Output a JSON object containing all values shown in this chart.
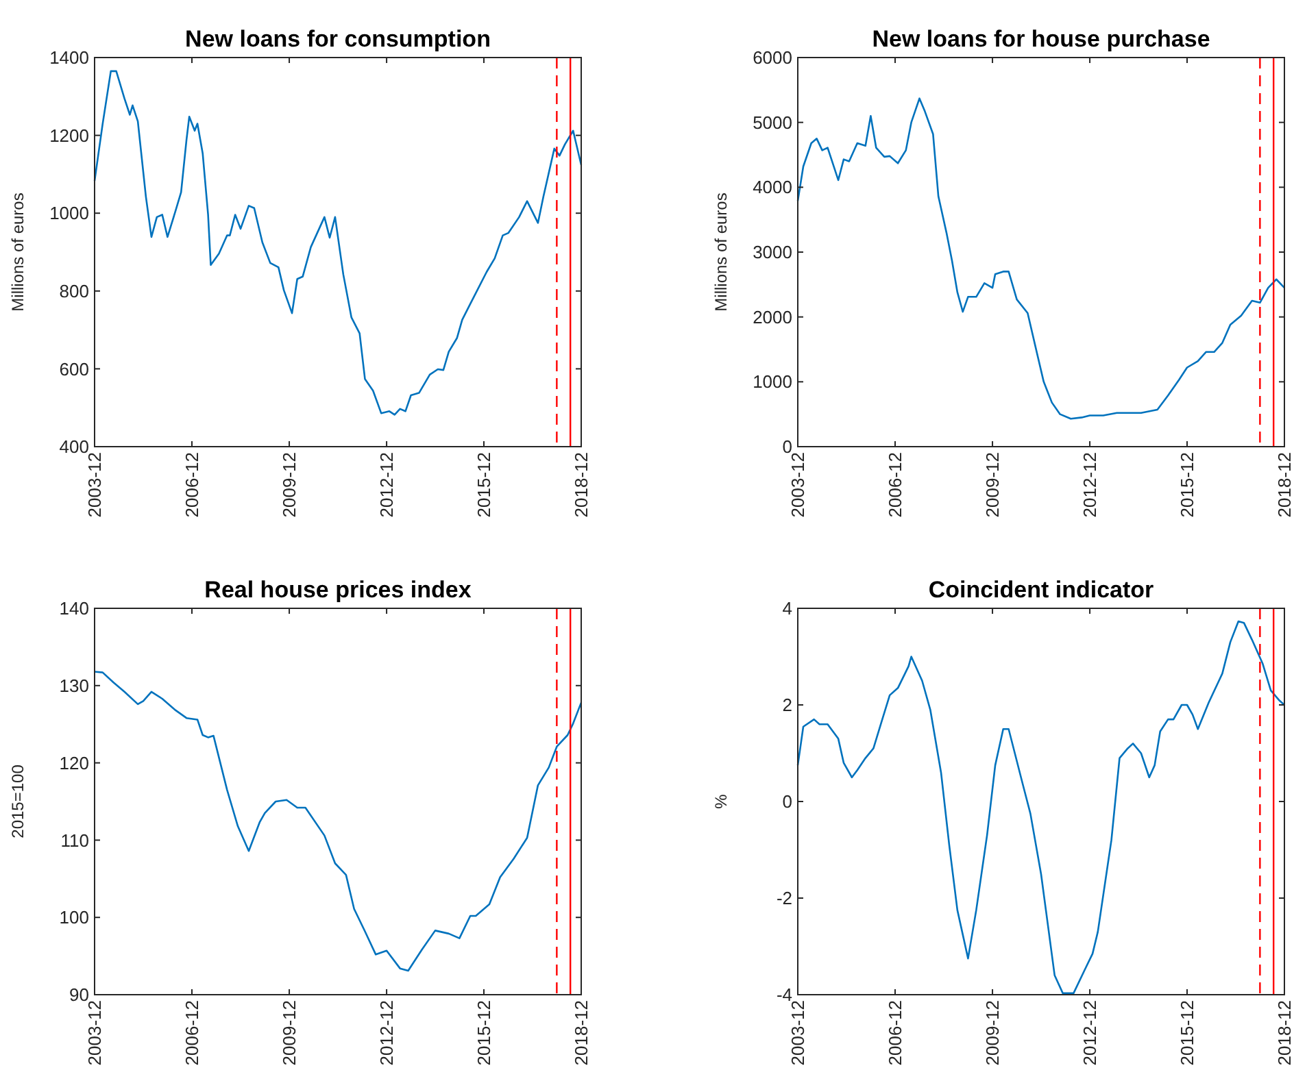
{
  "chart_data": [
    {
      "type": "line",
      "title": "New loans for consumption",
      "ylabel": "Millions of euros",
      "xlim": [
        "2003-12",
        "2018-12"
      ],
      "xticks": [
        "2003-12",
        "2006-12",
        "2009-12",
        "2012-12",
        "2015-12",
        "2018-12"
      ],
      "ylim": [
        400,
        1400
      ],
      "yticks": [
        400,
        600,
        800,
        1000,
        1200,
        1400
      ],
      "ref_lines": [
        {
          "axis": "x",
          "value": "2018-03",
          "color": "#ff0000",
          "line_style": "dashed"
        },
        {
          "axis": "x",
          "value": "2018-08",
          "color": "#ff0000",
          "line_style": "solid"
        }
      ],
      "series": [
        {
          "color": "#0072bd",
          "x": [
            "2003-12",
            "2004-03",
            "2004-06",
            "2004-08",
            "2004-11",
            "2005-01",
            "2005-02",
            "2005-04",
            "2005-07",
            "2005-09",
            "2005-11",
            "2006-01",
            "2006-03",
            "2006-06",
            "2006-08",
            "2006-10",
            "2006-11",
            "2007-01",
            "2007-02",
            "2007-04",
            "2007-06",
            "2007-07",
            "2007-10",
            "2008-01",
            "2008-02",
            "2008-04",
            "2008-06",
            "2008-09",
            "2008-11",
            "2009-02",
            "2009-05",
            "2009-08",
            "2009-10",
            "2010-01",
            "2010-03",
            "2010-05",
            "2010-08",
            "2011-01",
            "2011-03",
            "2011-05",
            "2011-08",
            "2011-11",
            "2012-02",
            "2012-04",
            "2012-07",
            "2012-10",
            "2013-01",
            "2013-03",
            "2013-05",
            "2013-07",
            "2013-09",
            "2013-12",
            "2014-04",
            "2014-07",
            "2014-09",
            "2014-11",
            "2015-02",
            "2015-04",
            "2015-07",
            "2016-01",
            "2016-04",
            "2016-07",
            "2016-09",
            "2017-01",
            "2017-04",
            "2017-08",
            "2017-10",
            "2018-02",
            "2018-04",
            "2018-06",
            "2018-09",
            "2018-12"
          ],
          "values": [
            1083,
            1230,
            1365,
            1365,
            1295,
            1253,
            1277,
            1236,
            1042,
            939,
            990,
            996,
            939,
            1007,
            1054,
            1189,
            1248,
            1212,
            1230,
            1154,
            996,
            867,
            896,
            943,
            943,
            996,
            960,
            1019,
            1013,
            925,
            872,
            861,
            802,
            743,
            831,
            837,
            913,
            990,
            937,
            990,
            843,
            732,
            691,
            574,
            544,
            486,
            491,
            482,
            497,
            491,
            532,
            538,
            585,
            599,
            597,
            644,
            679,
            726,
            767,
            849,
            884,
            943,
            949,
            990,
            1031,
            975,
            1042,
            1166,
            1148,
            1177,
            1212,
            1124
          ]
        }
      ]
    },
    {
      "type": "line",
      "title": "New loans for house purchase",
      "ylabel": "Millions of euros",
      "xlim": [
        "2003-12",
        "2018-12"
      ],
      "xticks": [
        "2003-12",
        "2006-12",
        "2009-12",
        "2012-12",
        "2015-12",
        "2018-12"
      ],
      "ylim": [
        0,
        6000
      ],
      "yticks": [
        0,
        1000,
        2000,
        3000,
        4000,
        5000,
        6000
      ],
      "ref_lines": [
        {
          "axis": "x",
          "value": "2018-03",
          "color": "#ff0000",
          "line_style": "dashed"
        },
        {
          "axis": "x",
          "value": "2018-08",
          "color": "#ff0000",
          "line_style": "solid"
        }
      ],
      "series": [
        {
          "color": "#0072bd",
          "x": [
            "2003-12",
            "2004-02",
            "2004-05",
            "2004-07",
            "2004-09",
            "2004-11",
            "2005-03",
            "2005-05",
            "2005-07",
            "2005-10",
            "2006-01",
            "2006-03",
            "2006-05",
            "2006-08",
            "2006-10",
            "2007-01",
            "2007-04",
            "2007-06",
            "2007-09",
            "2007-11",
            "2008-02",
            "2008-04",
            "2008-07",
            "2008-09",
            "2008-11",
            "2009-01",
            "2009-03",
            "2009-06",
            "2009-09",
            "2009-12",
            "2010-01",
            "2010-04",
            "2010-06",
            "2010-09",
            "2011-01",
            "2011-04",
            "2011-07",
            "2011-10",
            "2012-01",
            "2012-05",
            "2012-09",
            "2012-12",
            "2013-05",
            "2013-10",
            "2014-07",
            "2015-01",
            "2015-05",
            "2015-09",
            "2015-12",
            "2016-04",
            "2016-07",
            "2016-10",
            "2017-01",
            "2017-04",
            "2017-08",
            "2017-12",
            "2018-03",
            "2018-06",
            "2018-09",
            "2018-12"
          ],
          "values": [
            3790,
            4320,
            4680,
            4750,
            4570,
            4610,
            4110,
            4430,
            4400,
            4680,
            4640,
            5100,
            4610,
            4470,
            4480,
            4370,
            4570,
            5000,
            5370,
            5170,
            4820,
            3860,
            3300,
            2870,
            2380,
            2080,
            2310,
            2310,
            2520,
            2450,
            2660,
            2700,
            2700,
            2270,
            2060,
            1530,
            1000,
            680,
            500,
            430,
            450,
            480,
            480,
            520,
            520,
            570,
            790,
            1030,
            1220,
            1320,
            1460,
            1460,
            1600,
            1880,
            2020,
            2250,
            2220,
            2450,
            2580,
            2450
          ]
        }
      ]
    },
    {
      "type": "line",
      "title": "Real house prices index",
      "ylabel": "2015=100",
      "xlim": [
        "2003-12",
        "2018-12"
      ],
      "xticks": [
        "2003-12",
        "2006-12",
        "2009-12",
        "2012-12",
        "2015-12",
        "2018-12"
      ],
      "ylim": [
        90,
        140
      ],
      "yticks": [
        90,
        100,
        110,
        120,
        130,
        140
      ],
      "ref_lines": [
        {
          "axis": "x",
          "value": "2018-03",
          "color": "#ff0000",
          "line_style": "dashed"
        },
        {
          "axis": "x",
          "value": "2018-08",
          "color": "#ff0000",
          "line_style": "solid"
        }
      ],
      "series": [
        {
          "color": "#0072bd",
          "x": [
            "2003-12",
            "2004-03",
            "2004-07",
            "2004-11",
            "2005-04",
            "2005-06",
            "2005-09",
            "2006-01",
            "2006-06",
            "2006-10",
            "2007-02",
            "2007-04",
            "2007-06",
            "2007-08",
            "2008-01",
            "2008-05",
            "2008-09",
            "2009-01",
            "2009-03",
            "2009-07",
            "2009-11",
            "2010-03",
            "2010-06",
            "2011-01",
            "2011-05",
            "2011-09",
            "2011-12",
            "2012-04",
            "2012-08",
            "2012-12",
            "2013-05",
            "2013-08",
            "2014-01",
            "2014-06",
            "2014-11",
            "2015-03",
            "2015-07",
            "2015-09",
            "2016-02",
            "2016-06",
            "2016-11",
            "2017-04",
            "2017-08",
            "2017-12",
            "2018-03",
            "2018-07",
            "2018-09",
            "2018-12"
          ],
          "values": [
            131.8,
            131.7,
            130.4,
            129.2,
            127.6,
            128.0,
            129.2,
            128.3,
            126.8,
            125.8,
            125.6,
            123.6,
            123.3,
            123.5,
            116.5,
            111.8,
            108.6,
            112.3,
            113.5,
            115.0,
            115.2,
            114.2,
            114.2,
            110.6,
            107.0,
            105.5,
            101.1,
            98.2,
            95.2,
            95.7,
            93.4,
            93.1,
            95.8,
            98.3,
            97.9,
            97.3,
            100.2,
            100.2,
            101.7,
            105.2,
            107.6,
            110.3,
            117.1,
            119.4,
            122.1,
            123.6,
            125.1,
            127.8
          ]
        }
      ]
    },
    {
      "type": "line",
      "title": "Coincident indicator",
      "ylabel": "%",
      "xlim": [
        "2003-12",
        "2018-12"
      ],
      "xticks": [
        "2003-12",
        "2006-12",
        "2009-12",
        "2012-12",
        "2015-12",
        "2018-12"
      ],
      "ylim": [
        -4,
        4
      ],
      "yticks": [
        -4,
        -2,
        0,
        2,
        4
      ],
      "ref_lines": [
        {
          "axis": "x",
          "value": "2018-03",
          "color": "#ff0000",
          "line_style": "dashed"
        },
        {
          "axis": "x",
          "value": "2018-08",
          "color": "#ff0000",
          "line_style": "solid"
        }
      ],
      "series": [
        {
          "color": "#0072bd",
          "x": [
            "2003-12",
            "2004-02",
            "2004-06",
            "2004-08",
            "2004-11",
            "2005-03",
            "2005-05",
            "2005-08",
            "2005-10",
            "2006-01",
            "2006-04",
            "2006-07",
            "2006-10",
            "2007-01",
            "2007-05",
            "2007-06",
            "2007-10",
            "2008-01",
            "2008-05",
            "2008-08",
            "2008-11",
            "2009-03",
            "2009-06",
            "2009-10",
            "2010-01",
            "2010-04",
            "2010-06",
            "2010-11",
            "2011-02",
            "2011-06",
            "2011-11",
            "2012-02",
            "2012-06",
            "2012-10",
            "2013-01",
            "2013-03",
            "2013-08",
            "2013-11",
            "2014-02",
            "2014-04",
            "2014-07",
            "2014-10",
            "2014-12",
            "2015-02",
            "2015-05",
            "2015-07",
            "2015-10",
            "2015-12",
            "2016-02",
            "2016-04",
            "2016-08",
            "2017-01",
            "2017-04",
            "2017-07",
            "2017-09",
            "2017-12",
            "2018-04",
            "2018-07",
            "2018-10",
            "2018-12"
          ],
          "values": [
            0.75,
            1.55,
            1.7,
            1.6,
            1.6,
            1.3,
            0.8,
            0.5,
            0.65,
            0.9,
            1.1,
            1.65,
            2.2,
            2.35,
            2.8,
            3.0,
            2.5,
            1.9,
            0.6,
            -0.9,
            -2.25,
            -3.25,
            -2.25,
            -0.7,
            0.75,
            1.5,
            1.5,
            0.4,
            -0.25,
            -1.5,
            -3.6,
            -3.97,
            -3.97,
            -3.5,
            -3.15,
            -2.7,
            -0.8,
            0.9,
            1.1,
            1.2,
            1.0,
            0.5,
            0.75,
            1.45,
            1.7,
            1.7,
            2.0,
            2.0,
            1.8,
            1.5,
            2.05,
            2.65,
            3.3,
            3.73,
            3.7,
            3.35,
            2.85,
            2.3,
            2.1,
            2.0
          ]
        }
      ]
    }
  ]
}
